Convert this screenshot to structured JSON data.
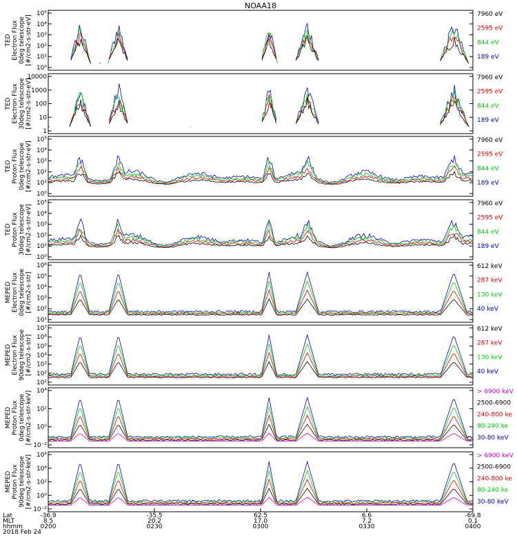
{
  "chart_data": {
    "type": "line",
    "title": "NOAA18",
    "panels": [
      {
        "ylabel_lines": [
          "TED",
          "Electron Flux",
          "0deg telescope",
          "[#/cm2-s-str-eV]"
        ],
        "yticks": [
          "10⁰",
          "10¹",
          "10²",
          "10³",
          "10⁴",
          "10⁵"
        ],
        "ylog": true,
        "legend": [
          {
            "label": "7960 eV",
            "color": "#000000"
          },
          {
            "label": "2595 eV",
            "color": "#e00000"
          },
          {
            "label": "844 eV",
            "color": "#00cc00"
          },
          {
            "label": "189 eV",
            "color": "#0000cc"
          }
        ]
      },
      {
        "ylabel_lines": [
          "TED",
          "Electron Flux",
          "30deg telescope",
          "[#/cm2-s-str-eV]"
        ],
        "yticks": [
          "1",
          "10",
          "100",
          "1000",
          "10000"
        ],
        "ylog": true,
        "legend": [
          {
            "label": "7960 eV",
            "color": "#000000"
          },
          {
            "label": "2595 eV",
            "color": "#e00000"
          },
          {
            "label": "844 eV",
            "color": "#00cc00"
          },
          {
            "label": "189 eV",
            "color": "#0000cc"
          }
        ]
      },
      {
        "ylabel_lines": [
          "TED",
          "Proton Flux",
          "0deg telescope",
          "[#/cm2-s-str-eV]"
        ],
        "yticks": [
          "10⁰",
          "10¹",
          "10²",
          "10³",
          "10⁴",
          "10⁵"
        ],
        "ylog": true,
        "legend": [
          {
            "label": "7960 eV",
            "color": "#000000"
          },
          {
            "label": "2595 eV",
            "color": "#e00000"
          },
          {
            "label": "844 eV",
            "color": "#00cc00"
          },
          {
            "label": "189 eV",
            "color": "#0000cc"
          }
        ]
      },
      {
        "ylabel_lines": [
          "TED",
          "Proton Flux",
          "30deg telescope",
          "[#/cm2-s-str-eV]"
        ],
        "yticks": [
          "10⁰",
          "10¹",
          "10²",
          "10³",
          "10⁴",
          "10⁵"
        ],
        "ylog": true,
        "legend": [
          {
            "label": "7960 eV",
            "color": "#000000"
          },
          {
            "label": "2595 eV",
            "color": "#e00000"
          },
          {
            "label": "844 eV",
            "color": "#00cc00"
          },
          {
            "label": "189 eV",
            "color": "#0000cc"
          }
        ]
      },
      {
        "ylabel_lines": [
          "MEPED",
          "Electron Flux",
          "0deg telescope",
          "[#/cm2-s-str]"
        ],
        "yticks": [
          "10¹",
          "10²",
          "10³",
          "10⁴",
          "10⁵",
          "10⁶"
        ],
        "ylog": true,
        "legend": [
          {
            "label": "612 keV",
            "color": "#000000"
          },
          {
            "label": "287 keV",
            "color": "#e00000"
          },
          {
            "label": "130 keV",
            "color": "#00cc00"
          },
          {
            "label": "40 keV",
            "color": "#0000cc"
          }
        ]
      },
      {
        "ylabel_lines": [
          "MEPED",
          "Electron Flux",
          "90deg telescope",
          "[#/cm2-s-str]"
        ],
        "yticks": [
          "10¹",
          "10²",
          "10³",
          "10⁴",
          "10⁵",
          "10⁶",
          "10⁷"
        ],
        "ylog": true,
        "legend": [
          {
            "label": "612 keV",
            "color": "#000000"
          },
          {
            "label": "287 keV",
            "color": "#e00000"
          },
          {
            "label": "130 keV",
            "color": "#00cc00"
          },
          {
            "label": "40 keV",
            "color": "#0000cc"
          }
        ]
      },
      {
        "ylabel_lines": [
          "MEPED",
          "Proton Flux",
          "0deg telescope",
          "[#/cm2-s-str-keV]"
        ],
        "yticks": [
          "10⁻²",
          "10⁰",
          "10²",
          "10⁴"
        ],
        "ylog": true,
        "legend": [
          {
            "label": "> 6900 keV",
            "color": "#cc00cc"
          },
          {
            "label": "2500-6900",
            "color": "#000000"
          },
          {
            "label": "240-800 ke",
            "color": "#e00000"
          },
          {
            "label": "80-240 ke",
            "color": "#00cc00"
          },
          {
            "label": "30-80 keV",
            "color": "#0000cc"
          }
        ]
      },
      {
        "ylabel_lines": [
          "MEPED",
          "Proton Flux",
          "90deg telescope",
          "[#/cm2-s-str-keV]"
        ],
        "yticks": [
          "10⁻²",
          "10⁰",
          "10²",
          "10⁴",
          "10⁶"
        ],
        "ylog": true,
        "legend": [
          {
            "label": "> 6900 keV",
            "color": "#cc00cc"
          },
          {
            "label": "2500-6900",
            "color": "#000000"
          },
          {
            "label": "240-800 ke",
            "color": "#e00000"
          },
          {
            "label": "80-240 ke",
            "color": "#00cc00"
          },
          {
            "label": "30-80 keV",
            "color": "#0000cc"
          }
        ]
      }
    ],
    "xaxis": {
      "row_labels": [
        "Lat",
        "MLT",
        "hhmm",
        "2018 Feb 24"
      ],
      "ticks": [
        {
          "lat": "-36.9",
          "mlt": "8.5",
          "hhmm": "0200"
        },
        {
          "lat": "-35.5",
          "mlt": "20.2",
          "hhmm": "0230"
        },
        {
          "lat": "62.5",
          "mlt": "17.0",
          "hhmm": "0300"
        },
        {
          "lat": "6.6",
          "mlt": "7.2",
          "hhmm": "0330"
        },
        {
          "lat": "-69.8",
          "mlt": "0.1",
          "hhmm": "0400"
        }
      ]
    }
  }
}
